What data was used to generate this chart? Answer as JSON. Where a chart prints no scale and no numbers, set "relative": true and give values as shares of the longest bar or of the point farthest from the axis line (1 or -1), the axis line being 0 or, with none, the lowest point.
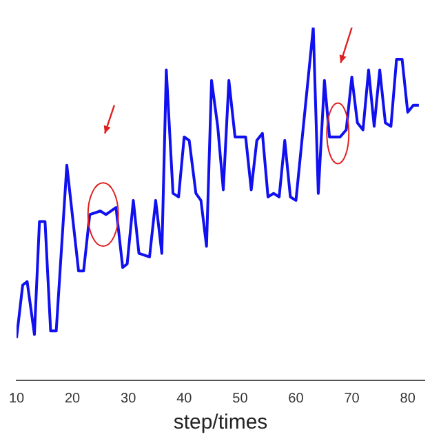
{
  "chart_data": {
    "type": "line",
    "xlabel": "step/times",
    "relative": true,
    "xlim": [
      10,
      83
    ],
    "xticks": [
      10,
      20,
      30,
      40,
      50,
      60,
      70,
      80
    ],
    "grid": false,
    "legend": false,
    "marker": "none",
    "line_style": "solid",
    "x": [
      10,
      11.1,
      11.9,
      13.2,
      14.1,
      15.1,
      16.1,
      17.1,
      19,
      21.1,
      22,
      23.1,
      25,
      26,
      27.8,
      29,
      29.8,
      30.9,
      31.9,
      33.8,
      34.9,
      36,
      36.8,
      38,
      39,
      40,
      40.9,
      42.1,
      43,
      44,
      44.9,
      46,
      47,
      48,
      49.1,
      51,
      52,
      53,
      54,
      55,
      56,
      57,
      58,
      59,
      60,
      63.1,
      64,
      65.1,
      66,
      67.9,
      69,
      70,
      71,
      72,
      73,
      74,
      75,
      76,
      77,
      78,
      79,
      80,
      81,
      82
    ],
    "series": [
      {
        "color": "#1010f0",
        "values": [
          0.12,
          0.27,
          0.28,
          0.13,
          0.45,
          0.45,
          0.14,
          0.14,
          0.61,
          0.31,
          0.31,
          0.47,
          0.48,
          0.47,
          0.49,
          0.32,
          0.33,
          0.51,
          0.36,
          0.35,
          0.51,
          0.36,
          0.88,
          0.53,
          0.52,
          0.69,
          0.68,
          0.53,
          0.51,
          0.38,
          0.85,
          0.72,
          0.54,
          0.85,
          0.69,
          0.69,
          0.54,
          0.68,
          0.7,
          0.52,
          0.53,
          0.52,
          0.68,
          0.52,
          0.51,
          1,
          0.53,
          0.85,
          0.69,
          0.69,
          0.71,
          0.86,
          0.73,
          0.71,
          0.88,
          0.72,
          0.88,
          0.73,
          0.72,
          0.91,
          0.91,
          0.76,
          0.78,
          0.78
        ]
      }
    ]
  }
}
